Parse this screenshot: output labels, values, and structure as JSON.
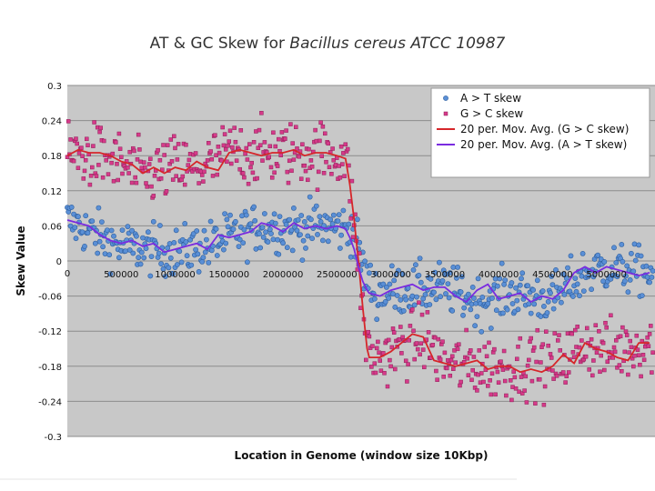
{
  "chart_data": {
    "type": "scatter",
    "title_prefix": "AT & GC Skew for ",
    "title_species": "Bacillus cereus ATCC 10987",
    "xlabel": "Location in Genome (window size 10Kbp)",
    "ylabel": "Skew Value",
    "xlim": [
      0,
      5450000
    ],
    "ylim": [
      -0.3,
      0.3
    ],
    "y_ticks": [
      "0.3",
      "0.24",
      "0.18",
      "0.12",
      "0.06",
      "0",
      "-0.06",
      "-0.12",
      "-0.18",
      "-0.24",
      "-0.3"
    ],
    "y_tick_values": [
      0.3,
      0.24,
      0.18,
      0.12,
      0.06,
      0,
      -0.06,
      -0.12,
      -0.18,
      -0.24,
      -0.3
    ],
    "x_ticks": [
      "0",
      "500000",
      "1000000",
      "1500000",
      "2000000",
      "2500000",
      "3000000",
      "3500000",
      "4000000",
      "4500000",
      "5000000"
    ],
    "x_tick_values": [
      0,
      500000,
      1000000,
      1500000,
      2000000,
      2500000,
      3000000,
      3500000,
      4000000,
      4500000,
      5000000
    ],
    "grid": true,
    "legend_position": "top-right",
    "background_color": "#c8c8c8",
    "series": [
      {
        "name": "A > T skew",
        "kind": "scatter",
        "color": "#5a8fd6",
        "trend": {
          "x": [
            0,
            200000,
            500000,
            1000000,
            1300000,
            1500000,
            1800000,
            2100000,
            2400000,
            2640000,
            2700000,
            2750000,
            2850000,
            3000000,
            3500000,
            3800000,
            4100000,
            4500000,
            4800000,
            5000000,
            5400000
          ],
          "y": [
            0.07,
            0.05,
            0.025,
            0.015,
            0.025,
            0.04,
            0.06,
            0.055,
            0.06,
            0.055,
            0.02,
            -0.02,
            -0.055,
            -0.05,
            -0.045,
            -0.07,
            -0.055,
            -0.065,
            -0.02,
            -0.01,
            -0.02
          ]
        },
        "spread": 0.035
      },
      {
        "name": "G > C skew",
        "kind": "scatter",
        "color": "#d63a8a",
        "trend": {
          "x": [
            0,
            300000,
            500000,
            700000,
            1000000,
            1200000,
            1500000,
            2000000,
            2300000,
            2580000,
            2650000,
            2730000,
            2780000,
            2850000,
            3000000,
            3300000,
            3500000,
            3800000,
            4100000,
            4300000,
            4500000,
            4800000,
            5000000,
            5400000
          ],
          "y": [
            0.18,
            0.18,
            0.165,
            0.145,
            0.16,
            0.155,
            0.185,
            0.185,
            0.185,
            0.18,
            0.08,
            -0.06,
            -0.15,
            -0.17,
            -0.155,
            -0.13,
            -0.175,
            -0.18,
            -0.185,
            -0.175,
            -0.18,
            -0.14,
            -0.155,
            -0.14
          ]
        },
        "spread": 0.045
      },
      {
        "name": "20 per. Mov. Avg. (G > C skew)",
        "kind": "line",
        "color": "#d6262a",
        "x": [
          0,
          100000,
          200000,
          300000,
          400000,
          500000,
          600000,
          700000,
          800000,
          900000,
          1000000,
          1100000,
          1200000,
          1300000,
          1400000,
          1500000,
          1600000,
          1700000,
          1800000,
          1900000,
          2000000,
          2100000,
          2200000,
          2300000,
          2400000,
          2500000,
          2580000,
          2620000,
          2660000,
          2700000,
          2740000,
          2780000,
          2800000,
          2900000,
          3000000,
          3100000,
          3200000,
          3300000,
          3400000,
          3500000,
          3600000,
          3700000,
          3800000,
          3900000,
          4000000,
          4100000,
          4200000,
          4300000,
          4400000,
          4500000,
          4600000,
          4700000,
          4800000,
          4900000,
          5000000,
          5100000,
          5200000,
          5300000,
          5400000
        ],
        "y": [
          0.18,
          0.19,
          0.185,
          0.185,
          0.18,
          0.17,
          0.165,
          0.15,
          0.16,
          0.15,
          0.16,
          0.155,
          0.17,
          0.16,
          0.155,
          0.185,
          0.19,
          0.185,
          0.18,
          0.185,
          0.185,
          0.19,
          0.18,
          0.185,
          0.185,
          0.18,
          0.175,
          0.13,
          0.07,
          0.0,
          -0.08,
          -0.15,
          -0.165,
          -0.165,
          -0.155,
          -0.14,
          -0.125,
          -0.13,
          -0.17,
          -0.175,
          -0.18,
          -0.175,
          -0.17,
          -0.185,
          -0.18,
          -0.18,
          -0.19,
          -0.185,
          -0.19,
          -0.18,
          -0.16,
          -0.175,
          -0.14,
          -0.15,
          -0.155,
          -0.165,
          -0.17,
          -0.14,
          -0.14
        ]
      },
      {
        "name": "20 per. Mov. Avg. (A > T skew)",
        "kind": "line",
        "color": "#7a2be0",
        "x": [
          0,
          100000,
          200000,
          300000,
          400000,
          500000,
          600000,
          700000,
          800000,
          900000,
          1000000,
          1100000,
          1200000,
          1300000,
          1400000,
          1500000,
          1600000,
          1700000,
          1800000,
          1900000,
          2000000,
          2100000,
          2200000,
          2300000,
          2400000,
          2500000,
          2580000,
          2620000,
          2660000,
          2700000,
          2740000,
          2780000,
          2800000,
          2900000,
          3000000,
          3100000,
          3200000,
          3300000,
          3400000,
          3500000,
          3600000,
          3700000,
          3800000,
          3900000,
          4000000,
          4100000,
          4200000,
          4300000,
          4400000,
          4500000,
          4600000,
          4700000,
          4800000,
          4900000,
          5000000,
          5100000,
          5200000,
          5300000,
          5400000
        ],
        "y": [
          0.07,
          0.065,
          0.06,
          0.045,
          0.035,
          0.03,
          0.035,
          0.025,
          0.03,
          0.015,
          0.02,
          0.025,
          0.03,
          0.02,
          0.045,
          0.04,
          0.045,
          0.05,
          0.065,
          0.06,
          0.05,
          0.065,
          0.055,
          0.06,
          0.055,
          0.06,
          0.055,
          0.04,
          0.02,
          -0.01,
          -0.035,
          -0.05,
          -0.055,
          -0.06,
          -0.05,
          -0.045,
          -0.04,
          -0.05,
          -0.045,
          -0.045,
          -0.06,
          -0.07,
          -0.05,
          -0.04,
          -0.065,
          -0.06,
          -0.055,
          -0.07,
          -0.06,
          -0.065,
          -0.05,
          -0.02,
          -0.01,
          -0.02,
          -0.01,
          -0.015,
          -0.02,
          -0.025,
          -0.02
        ]
      }
    ]
  }
}
